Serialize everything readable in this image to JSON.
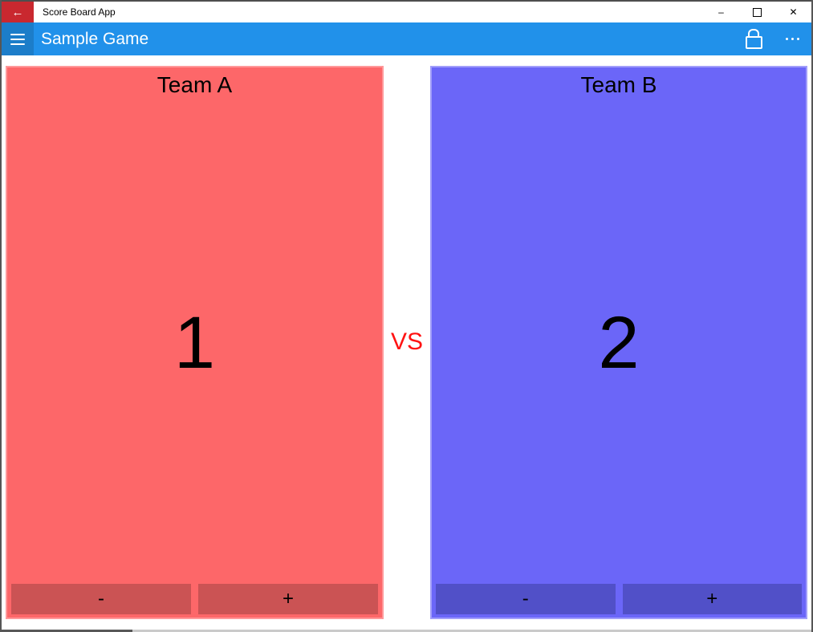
{
  "window": {
    "title": "Score Board App",
    "minimize_glyph": "–",
    "close_glyph": "✕"
  },
  "appbar": {
    "title": "Sample Game"
  },
  "scoreboard": {
    "vs_label": "VS",
    "teams": [
      {
        "name": "Team A",
        "score": "1",
        "panel_color": "#fd6769",
        "button_color": "#cb5354",
        "border_color": "#ff989a"
      },
      {
        "name": "Team B",
        "score": "2",
        "panel_color": "#6b66f8",
        "button_color": "#5150c8",
        "border_color": "#a19dfa"
      }
    ],
    "decrement_label": "-",
    "increment_label": "+"
  },
  "colors": {
    "titlebar_bg": "#ffffff",
    "back_button_bg": "#c9282f",
    "appbar_bg": "#2191ea",
    "hamburger_bg": "#1c7dc9",
    "vs_color": "#ff1313",
    "window_border": "#565656",
    "scrollbar_track": "#cacaca",
    "scrollbar_thumb": "#585858"
  }
}
